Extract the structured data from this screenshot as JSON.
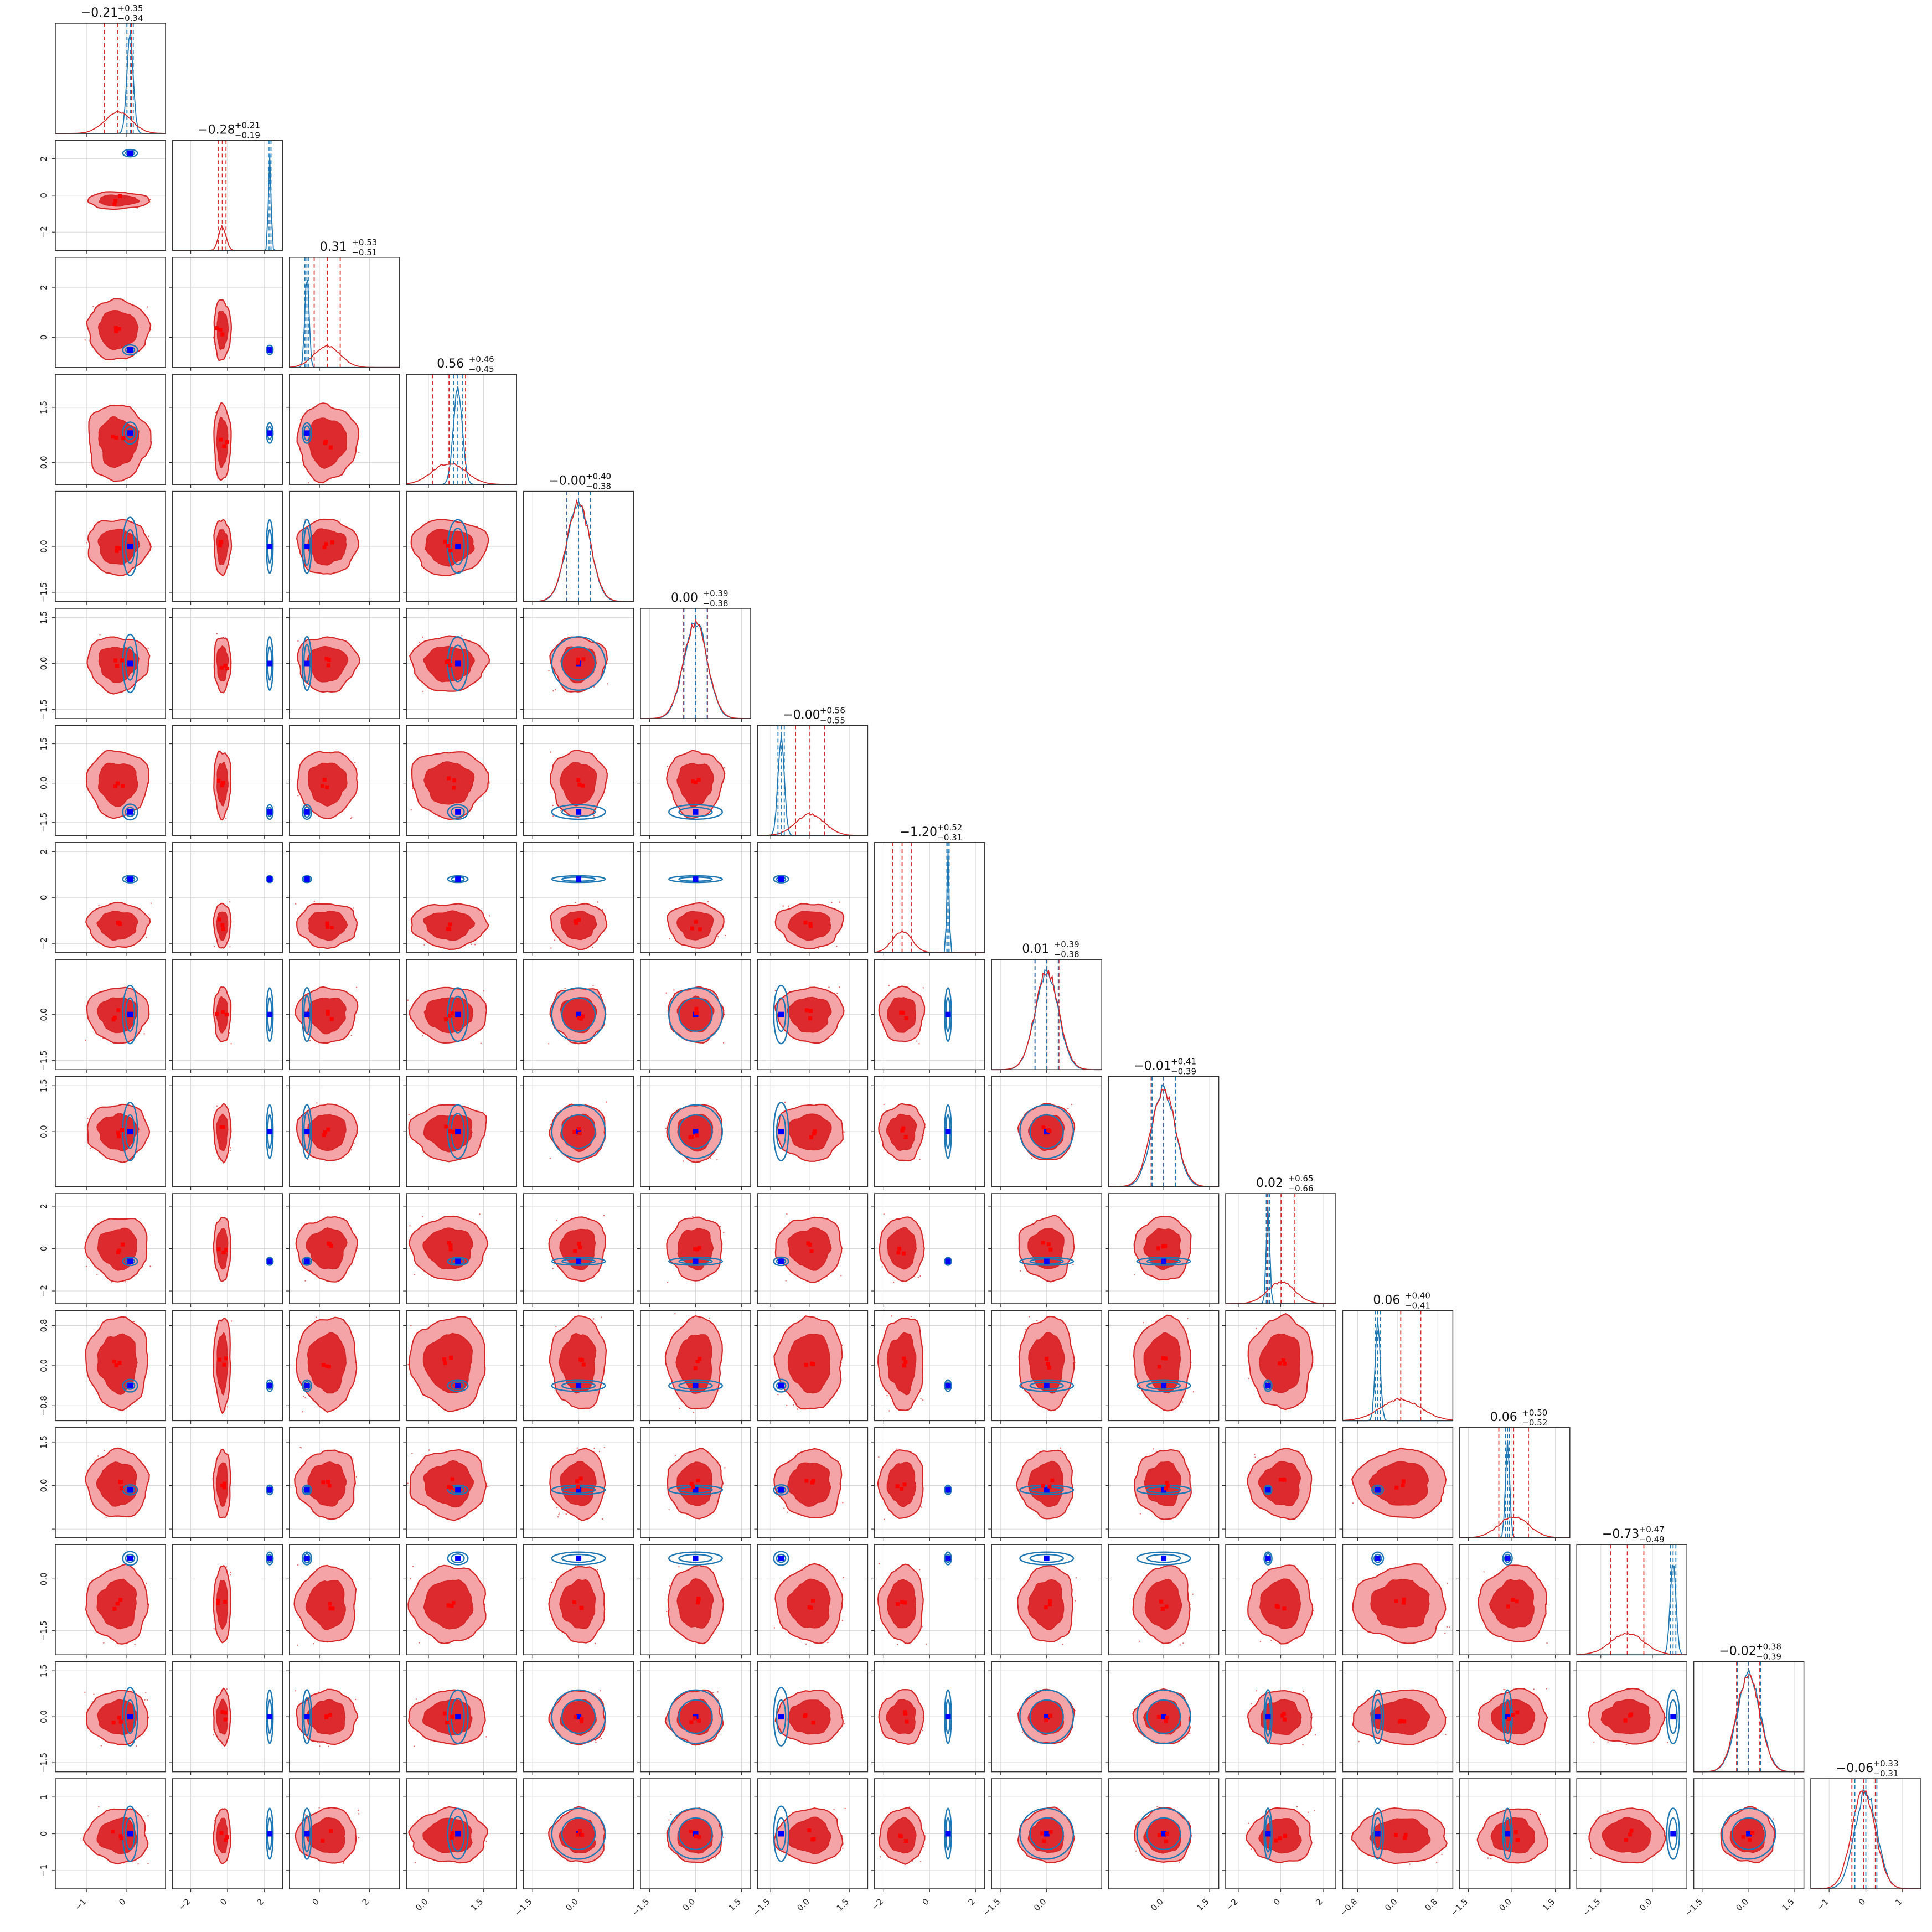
{
  "chart_data": {
    "type": "corner",
    "n_params": 16,
    "colors": {
      "red_fill_outer": "#f4a3a6",
      "red_fill_inner": "#dd2a2e",
      "red_line": "#d62728",
      "red_marker": "#ff0000",
      "blue_line": "#1f77b4",
      "blue_marker": "#0000ff",
      "grid": "#d9d9d9"
    },
    "params": [
      {
        "title": {
          "median": "−0.21",
          "plus": "+0.35",
          "minus": "−0.34"
        },
        "range": [
          -1.8,
          1.0
        ],
        "ticks": [
          -1,
          0
        ],
        "tick_labels": [
          "−1",
          "0"
        ],
        "red": {
          "mean": -0.21,
          "std": 0.34
        },
        "blue": {
          "mean": 0.1,
          "std": 0.08
        },
        "truth": 0.1
      },
      {
        "title": {
          "median": "−0.28",
          "plus": "+0.21",
          "minus": "−0.19"
        },
        "range": [
          -3.0,
          3.0
        ],
        "ticks": [
          -2,
          0,
          2
        ],
        "tick_labels": [
          "−2",
          "0",
          "2"
        ],
        "red": {
          "mean": -0.28,
          "std": 0.2
        },
        "blue": {
          "mean": 2.3,
          "std": 0.07
        },
        "truth": 2.3
      },
      {
        "title": {
          "median": "0.31",
          "plus": "+0.53",
          "minus": "−0.51"
        },
        "range": [
          -1.2,
          3.2
        ],
        "ticks": [
          0,
          2
        ],
        "tick_labels": [
          "0",
          "2"
        ],
        "red": {
          "mean": 0.31,
          "std": 0.52
        },
        "blue": {
          "mean": -0.5,
          "std": 0.08
        },
        "truth": -0.5
      },
      {
        "title": {
          "median": "0.56",
          "plus": "+0.46",
          "minus": "−0.45"
        },
        "range": [
          -0.6,
          2.4
        ],
        "ticks": [
          0,
          1.5
        ],
        "tick_labels": [
          "0.0",
          "1.5"
        ],
        "red": {
          "mean": 0.56,
          "std": 0.45
        },
        "blue": {
          "mean": 0.8,
          "std": 0.12
        },
        "truth": 0.8
      },
      {
        "title": {
          "median": "−0.00",
          "plus": "+0.40",
          "minus": "−0.38"
        },
        "range": [
          -1.8,
          1.8
        ],
        "ticks": [
          -1.5,
          0
        ],
        "tick_labels": [
          "−1.5",
          "0.0"
        ],
        "red": {
          "mean": 0.0,
          "std": 0.39
        },
        "blue": {
          "mean": 0.0,
          "std": 0.38
        },
        "truth": 0.0
      },
      {
        "title": {
          "median": "0.00",
          "plus": "+0.39",
          "minus": "−0.38"
        },
        "range": [
          -1.8,
          1.8
        ],
        "ticks": [
          -1.5,
          0,
          1.5
        ],
        "tick_labels": [
          "−1.5",
          "0.0",
          "1.5"
        ],
        "red": {
          "mean": 0.0,
          "std": 0.39
        },
        "blue": {
          "mean": 0.0,
          "std": 0.38
        },
        "truth": 0.0
      },
      {
        "title": {
          "median": "−0.00",
          "plus": "+0.56",
          "minus": "−0.55"
        },
        "range": [
          -2.0,
          2.2
        ],
        "ticks": [
          -1.5,
          0,
          1.5
        ],
        "tick_labels": [
          "−1.5",
          "0.0",
          "1.5"
        ],
        "red": {
          "mean": 0.0,
          "std": 0.55
        },
        "blue": {
          "mean": -1.1,
          "std": 0.12
        },
        "truth": -1.1
      },
      {
        "title": {
          "median": "−1.20",
          "plus": "+0.52",
          "minus": "−0.31"
        },
        "range": [
          -2.4,
          2.4
        ],
        "ticks": [
          -2,
          0,
          2
        ],
        "tick_labels": [
          "−2",
          "0",
          "2"
        ],
        "red": {
          "mean": -1.2,
          "std": 0.42
        },
        "blue": {
          "mean": 0.8,
          "std": 0.05
        },
        "truth": 0.8
      },
      {
        "title": {
          "median": "0.01",
          "plus": "+0.39",
          "minus": "−0.38"
        },
        "range": [
          -1.8,
          1.8
        ],
        "ticks": [
          -1.5,
          0
        ],
        "tick_labels": [
          "−1.5",
          "0.0"
        ],
        "red": {
          "mean": 0.01,
          "std": 0.39
        },
        "blue": {
          "mean": 0.0,
          "std": 0.38
        },
        "truth": 0.0
      },
      {
        "title": {
          "median": "−0.01",
          "plus": "+0.41",
          "minus": "−0.39"
        },
        "range": [
          -1.8,
          1.8
        ],
        "ticks": [
          0,
          1.5
        ],
        "tick_labels": [
          "0.0",
          "1.5"
        ],
        "red": {
          "mean": -0.01,
          "std": 0.4
        },
        "blue": {
          "mean": 0.0,
          "std": 0.38
        },
        "truth": 0.0
      },
      {
        "title": {
          "median": "0.02",
          "plus": "+0.65",
          "minus": "−0.66"
        },
        "range": [
          -2.6,
          2.6
        ],
        "ticks": [
          -2,
          0,
          2
        ],
        "tick_labels": [
          "−2",
          "0",
          "2"
        ],
        "red": {
          "mean": 0.02,
          "std": 0.65
        },
        "blue": {
          "mean": -0.6,
          "std": 0.08
        },
        "truth": -0.6
      },
      {
        "title": {
          "median": "0.06",
          "plus": "+0.40",
          "minus": "−0.41"
        },
        "range": [
          -1.1,
          1.1
        ],
        "ticks": [
          -0.8,
          0,
          0.8
        ],
        "tick_labels": [
          "−0.8",
          "0.0",
          "0.8"
        ],
        "red": {
          "mean": 0.06,
          "std": 0.4
        },
        "blue": {
          "mean": -0.4,
          "std": 0.05
        },
        "truth": -0.4
      },
      {
        "title": {
          "median": "0.06",
          "plus": "+0.50",
          "minus": "−0.52"
        },
        "range": [
          -1.8,
          2.0
        ],
        "ticks": [
          -1.5,
          0,
          1.5
        ],
        "tick_labels": [
          "−1.5",
          "0.0",
          "1.5"
        ],
        "red": {
          "mean": 0.06,
          "std": 0.51
        },
        "blue": {
          "mean": -0.15,
          "std": 0.07
        },
        "truth": -0.15
      },
      {
        "title": {
          "median": "−0.73",
          "plus": "+0.47",
          "minus": "−0.49"
        },
        "range": [
          -2.2,
          1.0
        ],
        "ticks": [
          -1.5,
          0
        ],
        "tick_labels": [
          "−1.5",
          "0.0"
        ],
        "red": {
          "mean": -0.73,
          "std": 0.48
        },
        "blue": {
          "mean": 0.6,
          "std": 0.08
        },
        "truth": 0.6
      },
      {
        "title": {
          "median": "−0.02",
          "plus": "+0.38",
          "minus": "−0.39"
        },
        "range": [
          -1.8,
          1.8
        ],
        "ticks": [
          -1.5,
          0,
          1.5
        ],
        "tick_labels": [
          "−1.5",
          "0.0",
          "1.5"
        ],
        "red": {
          "mean": -0.02,
          "std": 0.38
        },
        "blue": {
          "mean": 0.0,
          "std": 0.38
        },
        "truth": 0.0
      },
      {
        "title": {
          "median": "−0.06",
          "plus": "+0.33",
          "minus": "−0.31"
        },
        "range": [
          -1.5,
          1.5
        ],
        "ticks": [
          -1,
          0,
          1
        ],
        "tick_labels": [
          "−1",
          "0",
          "1"
        ],
        "red": {
          "mean": -0.06,
          "std": 0.32
        },
        "blue": {
          "mean": 0.0,
          "std": 0.3
        },
        "truth": 0.0
      }
    ],
    "bottom_axis": {
      "tick_values": [
        [
          -1,
          0
        ],
        [
          -2,
          0,
          2
        ],
        [
          0,
          2
        ],
        [
          0,
          1.5
        ],
        [
          -1.5,
          0
        ],
        [
          -1.5,
          0,
          1.5
        ],
        [
          -1.5,
          0,
          1.5
        ],
        [
          -2,
          0,
          2
        ],
        [
          -1.5,
          0
        ],
        [
          0,
          1.5
        ],
        [
          -2,
          0,
          2
        ],
        [
          -0.8,
          0,
          0.8
        ],
        [
          -1.5,
          0,
          1.5
        ],
        [
          -1.5,
          0
        ],
        [
          -1.5,
          0,
          1.5
        ],
        [
          -1,
          0,
          1
        ]
      ],
      "tick_labels": [
        [
          "−1",
          "0"
        ],
        [
          "−2",
          "0",
          "2"
        ],
        [
          "0",
          "2"
        ],
        [
          "0.0",
          "1.5"
        ],
        [
          "−1.5",
          "0.0"
        ],
        [
          "−1.5",
          "0.0",
          "1.5"
        ],
        [
          "−1.5",
          "0.0",
          "1.5"
        ],
        [
          "−2",
          "0",
          "2"
        ],
        [
          "−1.5",
          "0.0"
        ],
        [
          "0.0",
          "1.5"
        ],
        [
          "−2",
          "0",
          "2"
        ],
        [
          "−0.8",
          "0.0",
          "0.8"
        ],
        [
          "−1.5",
          "0.0",
          "1.5"
        ],
        [
          "−1.5",
          "0.0"
        ],
        [
          "−1.5",
          "0.0",
          "1.5"
        ],
        [
          "−1",
          "0",
          "1"
        ]
      ]
    },
    "left_axis": {
      "tick_values": [
        [],
        [
          -2,
          0,
          2
        ],
        [
          0,
          2
        ],
        [
          0,
          1.5
        ],
        [
          -1.5,
          0
        ],
        [
          -1.5,
          0,
          1.5
        ],
        [
          -1.5,
          0,
          1.5
        ],
        [
          -2,
          0,
          2
        ],
        [
          -1.5,
          0
        ],
        [
          0,
          1.5
        ],
        [
          -2,
          0,
          2
        ],
        [
          -0.8,
          0,
          0.8
        ],
        [
          0,
          1.5
        ],
        [
          -1.5,
          0
        ],
        [
          -1.5,
          0,
          1.5
        ],
        [
          -1,
          0,
          1
        ]
      ],
      "tick_labels": [
        [],
        [
          "−2",
          "0",
          "2"
        ],
        [
          "0",
          "2"
        ],
        [
          "0.0",
          "1.5"
        ],
        [
          "−1.5",
          "0.0"
        ],
        [
          "−1.5",
          "0.0",
          "1.5"
        ],
        [
          "−1.5",
          "0.0",
          "1.5"
        ],
        [
          "−2",
          "0",
          "2"
        ],
        [
          "−1.5",
          "0.0"
        ],
        [
          "0.0",
          "1.5"
        ],
        [
          "−2",
          "0",
          "2"
        ],
        [
          "−0.8",
          "0.0",
          "0.8"
        ],
        [
          "0.0",
          "1.5"
        ],
        [
          "−1.5",
          "0.0"
        ],
        [
          "−1.5",
          "0.0",
          "1.5"
        ],
        [
          "−1",
          "0",
          "1"
        ]
      ]
    },
    "grid": true,
    "legend": "none"
  }
}
